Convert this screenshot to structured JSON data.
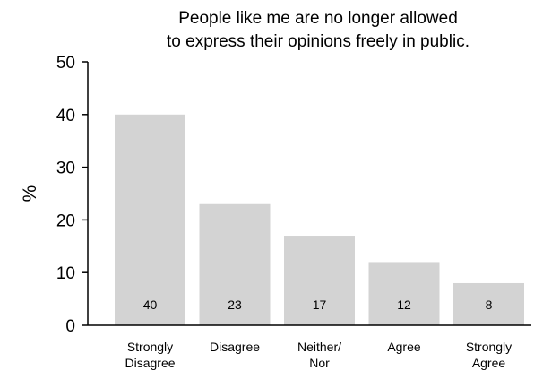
{
  "chart_data": {
    "type": "bar",
    "title_lines": [
      "People like me are no longer allowed",
      "to express their opinions freely in public."
    ],
    "xlabel": "",
    "ylabel": "%",
    "ylim": [
      0,
      50
    ],
    "yticks": [
      "0",
      "10",
      "20",
      "30",
      "40",
      "50"
    ],
    "categories": [
      [
        "Strongly",
        "Disagree"
      ],
      [
        "Disagree"
      ],
      [
        "Neither/",
        "Nor"
      ],
      [
        "Agree"
      ],
      [
        "Strongly",
        "Agree"
      ]
    ],
    "values": [
      40,
      23,
      17,
      12,
      8
    ],
    "value_labels": [
      "40",
      "23",
      "17",
      "12",
      "8"
    ],
    "bar_color": "#d3d3d3",
    "axis_color": "#000000",
    "grid": false,
    "legend": "none"
  }
}
